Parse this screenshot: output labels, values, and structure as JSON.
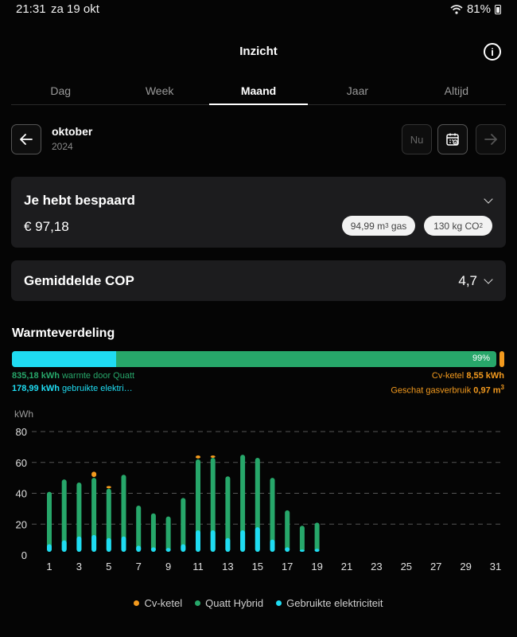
{
  "status": {
    "time": "21:31",
    "date": "za 19 okt",
    "battery": "81%"
  },
  "header": {
    "title": "Inzicht",
    "info_icon": "info-icon"
  },
  "tabs": [
    {
      "label": "Dag",
      "active": false
    },
    {
      "label": "Week",
      "active": false
    },
    {
      "label": "Maand",
      "active": true
    },
    {
      "label": "Jaar",
      "active": false
    },
    {
      "label": "Altijd",
      "active": false
    }
  ],
  "period": {
    "month": "oktober",
    "year": "2024",
    "now_label": "Nu"
  },
  "savings": {
    "title": "Je hebt bespaard",
    "amount": "€ 97,18",
    "gas_value": "94,99",
    "gas_unit": "m",
    "gas_unit_sup": "3",
    "gas_label": "gas",
    "co2_value": "130",
    "co2_unit": "kg CO",
    "co2_unit_sub": "2"
  },
  "cop": {
    "title": "Gemiddelde COP",
    "value": "4,7"
  },
  "distribution": {
    "title": "Warmteverdeling",
    "percent": "99%",
    "quatt_kwh": "835,18 kWh",
    "quatt_label": "warmte door Quatt",
    "elec_kwh": "178,99 kWh",
    "elec_label": "gebruikte elektri…",
    "cv_label": "Cv-ketel",
    "cv_kwh": "8,55 kWh",
    "gas_label": "Geschat gasverbruik",
    "gas_value": "0,97 m",
    "gas_sup": "3"
  },
  "colors": {
    "quatt": "#27a76a",
    "electricity": "#1fdcf2",
    "cv": "#f39a1e"
  },
  "chart_data": {
    "type": "bar",
    "ylabel": "kWh",
    "ylim": [
      0,
      80
    ],
    "yticks": [
      0,
      20,
      40,
      60,
      80
    ],
    "xticks": [
      1,
      3,
      5,
      7,
      9,
      11,
      13,
      15,
      17,
      19,
      21,
      23,
      25,
      27,
      29,
      31
    ],
    "days": [
      1,
      2,
      3,
      4,
      5,
      6,
      7,
      8,
      9,
      10,
      11,
      12,
      13,
      14,
      15,
      16,
      17,
      18,
      19
    ],
    "series": [
      {
        "name": "Cv-ketel",
        "values": [
          0,
          0,
          0,
          3.5,
          1.2,
          0,
          0,
          0,
          0,
          0,
          2.0,
          1.0,
          0,
          0,
          0,
          0,
          0,
          0,
          0
        ]
      },
      {
        "name": "Quatt Hybrid",
        "values": [
          41,
          49,
          47,
          50,
          43,
          52,
          32,
          27,
          25,
          37,
          62,
          63,
          51,
          65,
          63,
          50,
          29,
          19,
          21
        ]
      },
      {
        "name": "Gebruikte elektriciteit",
        "values": [
          7,
          9.5,
          12,
          13,
          11,
          12,
          6,
          5,
          4.5,
          7,
          16,
          16,
          11,
          16,
          18,
          10,
          5,
          3.5,
          4
        ]
      }
    ]
  },
  "legend": [
    {
      "label": "Cv-ketel",
      "color": "#f39a1e"
    },
    {
      "label": "Quatt Hybrid",
      "color": "#27a76a"
    },
    {
      "label": "Gebruikte elektriciteit",
      "color": "#1fdcf2"
    }
  ]
}
